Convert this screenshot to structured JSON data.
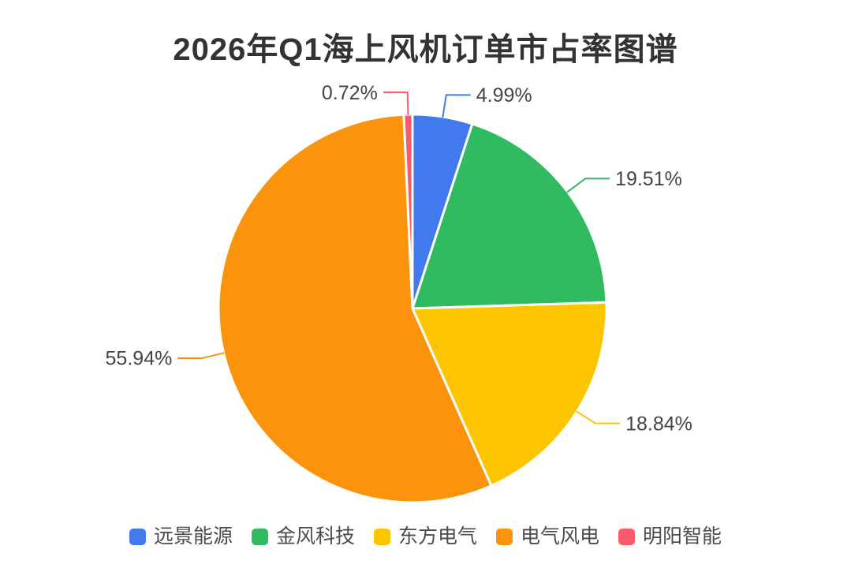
{
  "title": "2026年Q1海上风机订单市占率图谱",
  "chart_data": {
    "type": "pie",
    "title": "2026年Q1海上风机订单市占率图谱",
    "unit": "%",
    "total": 100,
    "start_angle": "top",
    "direction": "clockwise",
    "legend_position": "bottom",
    "background_color": "#ffffff",
    "label_text_color": "#444444",
    "slice_border_color": "#ffffff",
    "series": [
      {
        "name": "远景能源",
        "value": 4.99,
        "label": "4.99%",
        "color": "#417AED"
      },
      {
        "name": "金风科技",
        "value": 19.51,
        "label": "19.51%",
        "color": "#31BB61"
      },
      {
        "name": "东方电气",
        "value": 18.84,
        "label": "18.84%",
        "color": "#FDC500"
      },
      {
        "name": "电气风电",
        "value": 55.94,
        "label": "55.94%",
        "color": "#FB940C"
      },
      {
        "name": "明阳智能",
        "value": 0.72,
        "label": "0.72%",
        "color": "#F95A6C"
      }
    ]
  }
}
